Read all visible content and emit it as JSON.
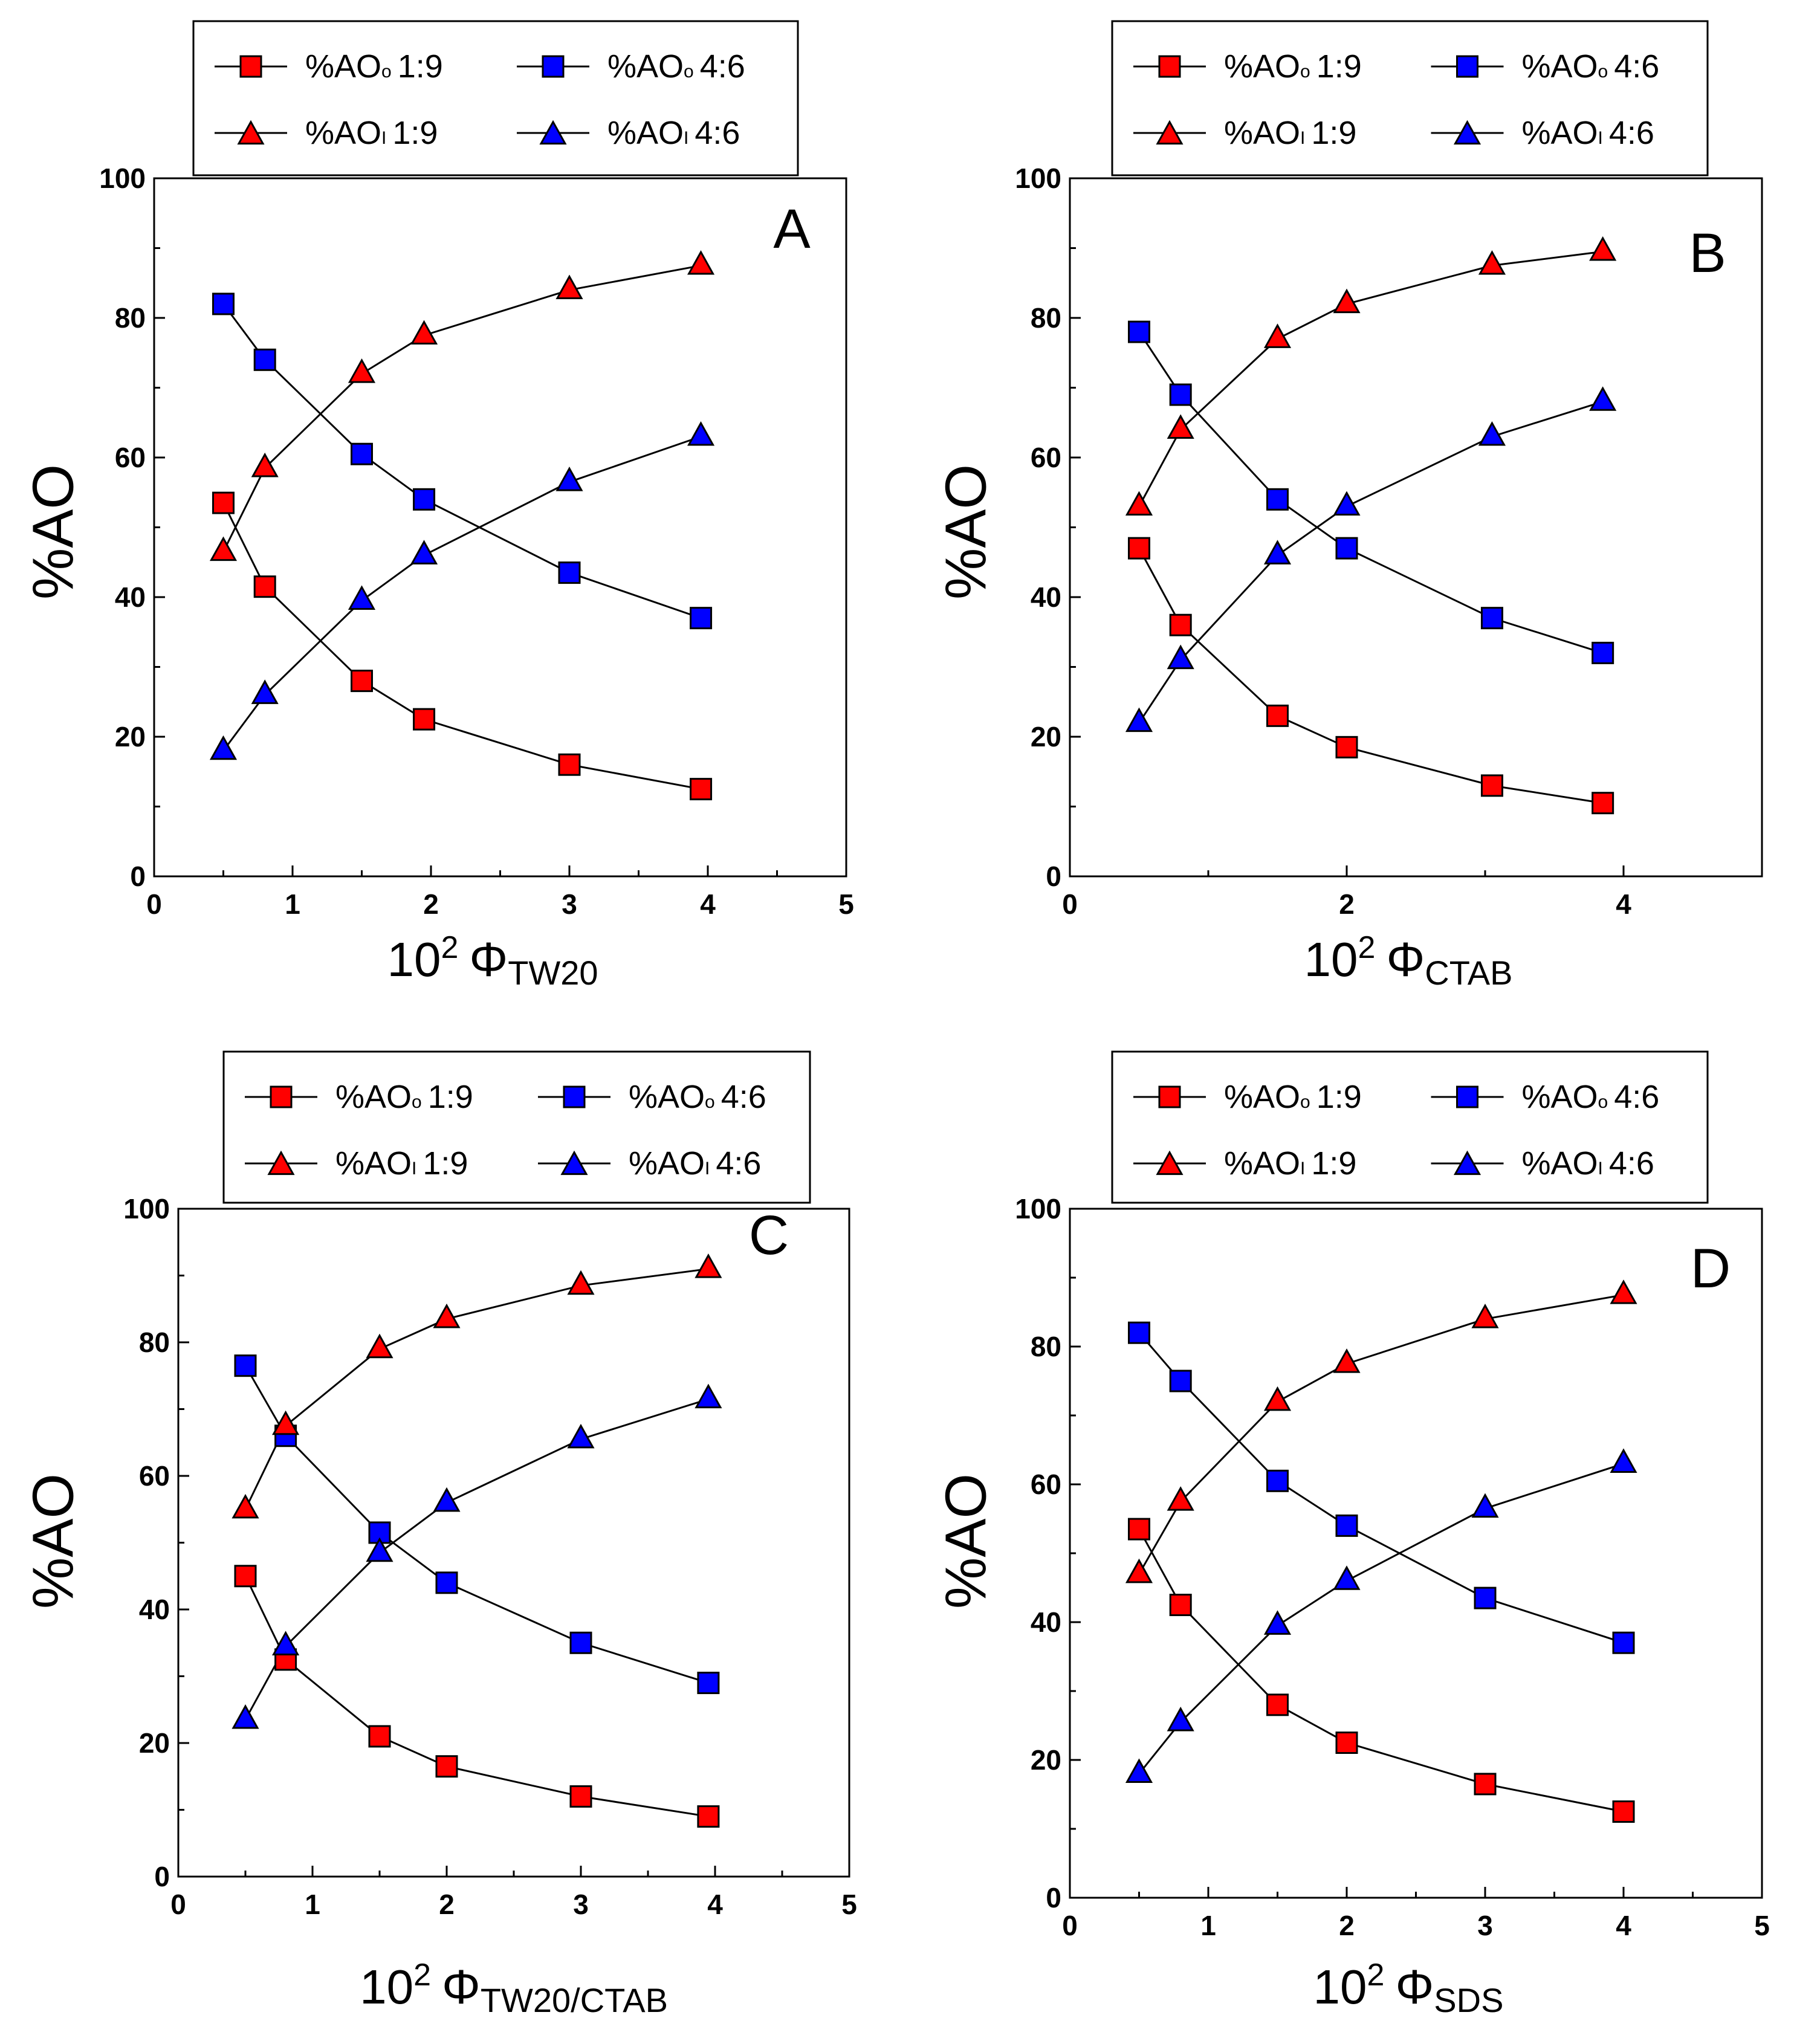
{
  "colors": {
    "red": "#ff0000",
    "blue": "#0000ff",
    "line": "#000000"
  },
  "chart_data": [
    {
      "type": "line",
      "panel_letter": "A",
      "ylabel": "%AO",
      "xlabel_prefix": "10",
      "xlabel_exp": "2",
      "xlabel_phi": "Φ",
      "xlabel_sub": "TW20",
      "xlim": [
        0,
        5
      ],
      "ylim": [
        0,
        100
      ],
      "xticks": [
        "0",
        "1",
        "2",
        "3",
        "4",
        "5"
      ],
      "yticks": [
        "0",
        "20",
        "40",
        "60",
        "80",
        "100"
      ],
      "legend": [
        {
          "prefix": "%AO",
          "sub": "o",
          "ratio": "1:9"
        },
        {
          "prefix": "%AO",
          "sub": "o",
          "ratio": "4:6"
        },
        {
          "prefix": "%AO",
          "sub": "I",
          "ratio": "1:9"
        },
        {
          "prefix": "%AO",
          "sub": "I",
          "ratio": "4:6"
        }
      ],
      "series": [
        {
          "name": "%AOo 1:9",
          "marker": "square",
          "color": "red",
          "x": [
            0.5,
            0.8,
            1.5,
            1.95,
            3.0,
            3.95
          ],
          "values": [
            53.5,
            41.5,
            28.0,
            22.5,
            16.0,
            12.5
          ]
        },
        {
          "name": "%AOo 4:6",
          "marker": "square",
          "color": "blue",
          "x": [
            0.5,
            0.8,
            1.5,
            1.95,
            3.0,
            3.95
          ],
          "values": [
            82.0,
            74.0,
            60.5,
            54.0,
            43.5,
            37.0
          ]
        },
        {
          "name": "%AOI 1:9",
          "marker": "triangle",
          "color": "red",
          "x": [
            0.5,
            0.8,
            1.5,
            1.95,
            3.0,
            3.95
          ],
          "values": [
            46.5,
            58.5,
            72.0,
            77.5,
            84.0,
            87.5
          ]
        },
        {
          "name": "%AOI 4:6",
          "marker": "triangle",
          "color": "blue",
          "x": [
            0.5,
            0.8,
            1.5,
            1.95,
            3.0,
            3.95
          ],
          "values": [
            18.0,
            26.0,
            39.5,
            46.0,
            56.5,
            63.0
          ]
        }
      ]
    },
    {
      "type": "line",
      "panel_letter": "B",
      "ylabel": "%AO",
      "xlabel_prefix": "10",
      "xlabel_exp": "2",
      "xlabel_phi": "Φ",
      "xlabel_sub": "CTAB",
      "xlim": [
        0,
        5
      ],
      "ylim": [
        0,
        100
      ],
      "xticks": [
        "0",
        "2",
        "4"
      ],
      "yticks": [
        "0",
        "20",
        "40",
        "60",
        "80",
        "100"
      ],
      "legend": [
        {
          "prefix": "%AO",
          "sub": "o",
          "ratio": "1:9"
        },
        {
          "prefix": "%AO",
          "sub": "o",
          "ratio": "4:6"
        },
        {
          "prefix": "%AO",
          "sub": "I",
          "ratio": "1:9"
        },
        {
          "prefix": "%AO",
          "sub": "I",
          "ratio": "4:6"
        }
      ],
      "series": [
        {
          "name": "%AOo 1:9",
          "marker": "square",
          "color": "red",
          "x": [
            0.5,
            0.8,
            1.5,
            2.0,
            3.05,
            3.85
          ],
          "values": [
            47.0,
            36.0,
            23.0,
            18.5,
            13.0,
            10.5
          ]
        },
        {
          "name": "%AOo 4:6",
          "marker": "square",
          "color": "blue",
          "x": [
            0.5,
            0.8,
            1.5,
            2.0,
            3.05,
            3.85
          ],
          "values": [
            78.0,
            69.0,
            54.0,
            47.0,
            37.0,
            32.0
          ]
        },
        {
          "name": "%AOI 1:9",
          "marker": "triangle",
          "color": "red",
          "x": [
            0.5,
            0.8,
            1.5,
            2.0,
            3.05,
            3.85
          ],
          "values": [
            53.0,
            64.0,
            77.0,
            82.0,
            87.5,
            89.5
          ]
        },
        {
          "name": "%AOI 4:6",
          "marker": "triangle",
          "color": "blue",
          "x": [
            0.5,
            0.8,
            1.5,
            2.0,
            3.05,
            3.85
          ],
          "values": [
            22.0,
            31.0,
            46.0,
            53.0,
            63.0,
            68.0
          ]
        }
      ]
    },
    {
      "type": "line",
      "panel_letter": "C",
      "ylabel": "%AO",
      "xlabel_prefix": "10",
      "xlabel_exp": "2",
      "xlabel_phi": "Φ",
      "xlabel_sub": "TW20/CTAB",
      "xlim": [
        0,
        5
      ],
      "ylim": [
        0,
        100
      ],
      "xticks": [
        "0",
        "1",
        "2",
        "3",
        "4",
        "5"
      ],
      "yticks": [
        "0",
        "20",
        "40",
        "60",
        "80",
        "100"
      ],
      "legend": [
        {
          "prefix": "%AO",
          "sub": "o",
          "ratio": "1:9"
        },
        {
          "prefix": "%AO",
          "sub": "o",
          "ratio": "4:6"
        },
        {
          "prefix": "%AO",
          "sub": "I",
          "ratio": "1:9"
        },
        {
          "prefix": "%AO",
          "sub": "I",
          "ratio": "4:6"
        }
      ],
      "series": [
        {
          "name": "%AOo 1:9",
          "marker": "square",
          "color": "red",
          "x": [
            0.5,
            0.8,
            1.5,
            2.0,
            3.0,
            3.95
          ],
          "values": [
            45.0,
            32.5,
            21.0,
            16.5,
            12.0,
            9.0
          ]
        },
        {
          "name": "%AOo 4:6",
          "marker": "square",
          "color": "blue",
          "x": [
            0.5,
            0.8,
            1.5,
            2.0,
            3.0,
            3.95
          ],
          "values": [
            76.5,
            66.0,
            51.5,
            44.0,
            35.0,
            29.0
          ]
        },
        {
          "name": "%AOI 1:9",
          "marker": "triangle",
          "color": "red",
          "x": [
            0.5,
            0.8,
            1.5,
            2.0,
            3.0,
            3.95
          ],
          "values": [
            55.0,
            67.5,
            79.0,
            83.5,
            88.5,
            91.0
          ]
        },
        {
          "name": "%AOI 4:6",
          "marker": "triangle",
          "color": "blue",
          "x": [
            0.5,
            0.8,
            1.5,
            2.0,
            3.0,
            3.95
          ],
          "values": [
            23.5,
            34.5,
            48.5,
            56.0,
            65.5,
            71.5
          ]
        }
      ]
    },
    {
      "type": "line",
      "panel_letter": "D",
      "ylabel": "%AO",
      "xlabel_prefix": "10",
      "xlabel_exp": "2",
      "xlabel_phi": "Φ",
      "xlabel_sub": "SDS",
      "xlim": [
        0,
        5
      ],
      "ylim": [
        0,
        100
      ],
      "xticks": [
        "0",
        "1",
        "2",
        "3",
        "4",
        "5"
      ],
      "yticks": [
        "0",
        "20",
        "40",
        "60",
        "80",
        "100"
      ],
      "legend": [
        {
          "prefix": "%AO",
          "sub": "o",
          "ratio": "1:9"
        },
        {
          "prefix": "%AO",
          "sub": "o",
          "ratio": "4:6"
        },
        {
          "prefix": "%AO",
          "sub": "I",
          "ratio": "1:9"
        },
        {
          "prefix": "%AO",
          "sub": "I",
          "ratio": "4:6"
        }
      ],
      "series": [
        {
          "name": "%AOo 1:9",
          "marker": "square",
          "color": "red",
          "x": [
            0.5,
            0.8,
            1.5,
            2.0,
            3.0,
            4.0
          ],
          "values": [
            53.5,
            42.5,
            28.0,
            22.5,
            16.5,
            12.5
          ]
        },
        {
          "name": "%AOo 4:6",
          "marker": "square",
          "color": "blue",
          "x": [
            0.5,
            0.8,
            1.5,
            2.0,
            3.0,
            4.0
          ],
          "values": [
            82.0,
            75.0,
            60.5,
            54.0,
            43.5,
            37.0
          ]
        },
        {
          "name": "%AOI 1:9",
          "marker": "triangle",
          "color": "red",
          "x": [
            0.5,
            0.8,
            1.5,
            2.0,
            3.0,
            4.0
          ],
          "values": [
            47.0,
            57.5,
            72.0,
            77.5,
            84.0,
            87.5
          ]
        },
        {
          "name": "%AOI 4:6",
          "marker": "triangle",
          "color": "blue",
          "x": [
            0.5,
            0.8,
            1.5,
            2.0,
            3.0,
            4.0
          ],
          "values": [
            18.0,
            25.5,
            39.5,
            46.0,
            56.5,
            63.0
          ]
        }
      ]
    }
  ]
}
